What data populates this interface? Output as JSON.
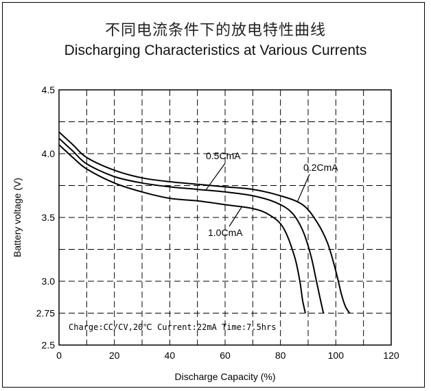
{
  "chart_data": {
    "type": "line",
    "title_cn": "不同电流条件下的放电特性曲线",
    "title": "Discharging Characteristics at Various Currents",
    "xlabel": "Discharge Capacity (%)",
    "ylabel": "Battery voltage (V)",
    "xlim": [
      0,
      120
    ],
    "ylim": [
      2.5,
      4.5
    ],
    "x_ticks": [
      "0",
      "20",
      "40",
      "60",
      "80",
      "100",
      "120"
    ],
    "y_ticks": [
      {
        "value": 2.5,
        "label": "2.5"
      },
      {
        "value": 2.75,
        "label": "2.75"
      },
      {
        "value": 3.0,
        "label": "3.0"
      },
      {
        "value": 3.5,
        "label": "3.5"
      },
      {
        "value": 4.0,
        "label": "4.0"
      },
      {
        "value": 4.5,
        "label": "4.5"
      }
    ],
    "grid": true,
    "series": [
      {
        "name": "0.2CmA",
        "points": [
          [
            0,
            4.17
          ],
          [
            5,
            4.07
          ],
          [
            10,
            3.97
          ],
          [
            20,
            3.87
          ],
          [
            30,
            3.81
          ],
          [
            40,
            3.78
          ],
          [
            50,
            3.76
          ],
          [
            60,
            3.74
          ],
          [
            70,
            3.72
          ],
          [
            80,
            3.67
          ],
          [
            88,
            3.6
          ],
          [
            93,
            3.47
          ],
          [
            97,
            3.3
          ],
          [
            100,
            3.08
          ],
          [
            102,
            2.9
          ],
          [
            103.5,
            2.8
          ],
          [
            105,
            2.75
          ]
        ]
      },
      {
        "name": "0.5CmA",
        "points": [
          [
            0,
            4.12
          ],
          [
            5,
            4.02
          ],
          [
            10,
            3.92
          ],
          [
            20,
            3.82
          ],
          [
            30,
            3.77
          ],
          [
            40,
            3.74
          ],
          [
            50,
            3.72
          ],
          [
            60,
            3.7
          ],
          [
            70,
            3.67
          ],
          [
            78,
            3.62
          ],
          [
            84,
            3.54
          ],
          [
            88,
            3.4
          ],
          [
            91,
            3.2
          ],
          [
            93,
            3.0
          ],
          [
            94.5,
            2.85
          ],
          [
            95.5,
            2.75
          ]
        ]
      },
      {
        "name": "1.0CmA",
        "points": [
          [
            0,
            4.07
          ],
          [
            5,
            3.97
          ],
          [
            10,
            3.88
          ],
          [
            20,
            3.77
          ],
          [
            30,
            3.7
          ],
          [
            40,
            3.65
          ],
          [
            50,
            3.63
          ],
          [
            60,
            3.6
          ],
          [
            70,
            3.57
          ],
          [
            76,
            3.52
          ],
          [
            81,
            3.42
          ],
          [
            85,
            3.2
          ],
          [
            87,
            3.0
          ],
          [
            88,
            2.85
          ],
          [
            89,
            2.75
          ]
        ]
      }
    ],
    "annotations": [
      {
        "text": "0.5CmA",
        "series": "0.5CmA"
      },
      {
        "text": "0.2CmA",
        "series": "0.2CmA"
      },
      {
        "text": "1.0CmA",
        "series": "1.0CmA"
      }
    ],
    "note": "Charge:CC/CV,20℃ Current:22mA Time:7.5hrs"
  }
}
